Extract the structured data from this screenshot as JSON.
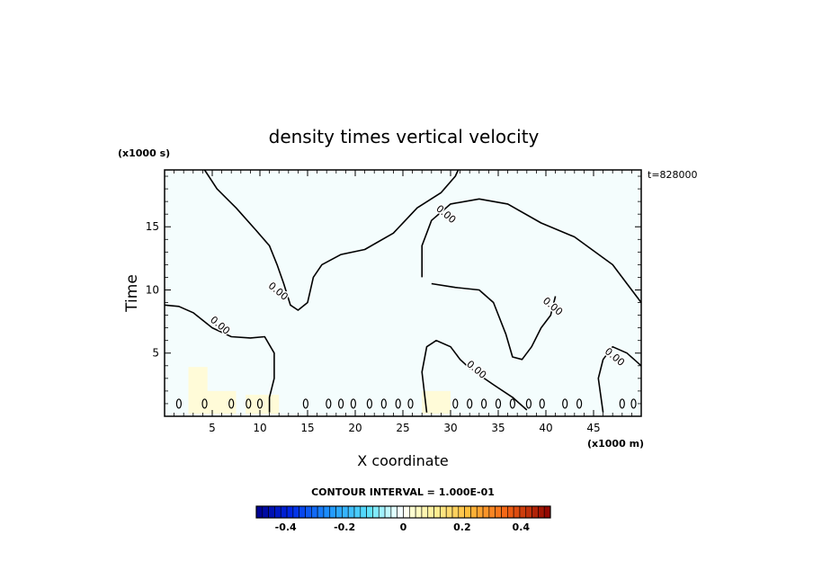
{
  "chart_data": {
    "type": "contour",
    "title": "density times vertical velocity",
    "xlabel": "X coordinate",
    "ylabel": "Time",
    "x_unit_label": "(x1000 m)",
    "y_unit_label": "(x1000 s)",
    "time_stamp": "t=828000",
    "xlim": [
      0,
      50
    ],
    "ylim": [
      0,
      19.5
    ],
    "x_ticks": [
      5,
      10,
      15,
      20,
      25,
      30,
      35,
      40,
      45
    ],
    "x_tick_labels": [
      "5",
      "10",
      "15",
      "20",
      "25",
      "30",
      "35",
      "40",
      "45"
    ],
    "y_ticks": [
      5,
      10,
      15
    ],
    "y_tick_labels": [
      "5",
      "10",
      "15"
    ],
    "contour_label": "0.00",
    "contour_interval_text": "CONTOUR INTERVAL = 1.000E-01",
    "colorbar": {
      "min": -0.5,
      "max": 0.5,
      "n_levels": 48,
      "tick_values": [
        -0.4,
        -0.2,
        0,
        0.2,
        0.4
      ],
      "tick_labels": [
        "-0.4",
        "-0.2",
        "0",
        "0.2",
        "0.4"
      ]
    },
    "zero_contour_lines": [
      [
        [
          4.2,
          19.5
        ],
        [
          5.5,
          18.0
        ],
        [
          7.5,
          16.5
        ],
        [
          9.5,
          14.8
        ],
        [
          11.0,
          13.5
        ],
        [
          11.8,
          12.0
        ],
        [
          12.5,
          10.5
        ],
        [
          13.2,
          8.8
        ],
        [
          14.0,
          8.4
        ],
        [
          15.0,
          9.0
        ],
        [
          15.6,
          11.0
        ],
        [
          16.5,
          12.0
        ],
        [
          18.5,
          12.8
        ],
        [
          21.0,
          13.2
        ],
        [
          24.0,
          14.5
        ],
        [
          26.5,
          16.5
        ],
        [
          29.0,
          17.7
        ],
        [
          30.5,
          19.0
        ],
        [
          30.8,
          19.5
        ]
      ],
      [
        [
          0.0,
          8.8
        ],
        [
          1.5,
          8.7
        ],
        [
          3.0,
          8.2
        ],
        [
          5.0,
          7.0
        ],
        [
          7.0,
          6.3
        ],
        [
          9.0,
          6.2
        ],
        [
          10.5,
          6.3
        ],
        [
          11.5,
          5.0
        ],
        [
          11.5,
          3.0
        ],
        [
          11.0,
          1.5
        ],
        [
          11.0,
          0.3
        ]
      ],
      [
        [
          27.5,
          0.3
        ],
        [
          27.0,
          3.5
        ],
        [
          27.5,
          5.5
        ],
        [
          28.5,
          6.0
        ],
        [
          30.0,
          5.5
        ],
        [
          31.0,
          4.5
        ],
        [
          32.0,
          3.8
        ],
        [
          34.5,
          2.5
        ],
        [
          36.5,
          1.5
        ],
        [
          38.0,
          0.5
        ]
      ],
      [
        [
          27.0,
          11.0
        ],
        [
          27.0,
          13.5
        ],
        [
          28.0,
          15.5
        ],
        [
          30.0,
          16.8
        ],
        [
          33.0,
          17.2
        ],
        [
          36.0,
          16.8
        ],
        [
          39.5,
          15.3
        ],
        [
          43.0,
          14.2
        ],
        [
          47.0,
          12.0
        ],
        [
          48.5,
          10.5
        ],
        [
          50.0,
          9.0
        ]
      ],
      [
        [
          28.0,
          10.5
        ],
        [
          30.5,
          10.2
        ],
        [
          33.0,
          10.0
        ],
        [
          34.5,
          9.0
        ],
        [
          35.8,
          6.5
        ],
        [
          36.5,
          4.7
        ],
        [
          37.5,
          4.5
        ],
        [
          38.5,
          5.5
        ],
        [
          39.5,
          7.0
        ],
        [
          40.5,
          8.0
        ],
        [
          41.0,
          9.5
        ]
      ],
      [
        [
          46.0,
          0.3
        ],
        [
          45.5,
          3.0
        ],
        [
          46.0,
          4.5
        ],
        [
          47.0,
          5.5
        ],
        [
          48.5,
          5.0
        ],
        [
          50.0,
          4.0
        ]
      ]
    ],
    "label_positions": [
      [
        11.7,
        9.7
      ],
      [
        5.6,
        7.0
      ],
      [
        29.3,
        15.8
      ],
      [
        32.5,
        3.5
      ],
      [
        40.5,
        8.5
      ],
      [
        47.0,
        4.5
      ]
    ],
    "shaded_regions": [
      {
        "sign": "positive",
        "x_range": [
          2.5,
          4.5
        ],
        "y_range": [
          0.2,
          3.9
        ]
      },
      {
        "sign": "positive",
        "x_range": [
          4.0,
          7.5
        ],
        "y_range": [
          0.2,
          2.0
        ]
      },
      {
        "sign": "positive",
        "x_range": [
          8.5,
          12.0
        ],
        "y_range": [
          0.2,
          1.7
        ]
      },
      {
        "sign": "positive",
        "x_range": [
          27.0,
          30.0
        ],
        "y_range": [
          0.2,
          2.0
        ]
      },
      {
        "sign": "negative",
        "x_range": [
          0.0,
          50.0
        ],
        "y_range": [
          0.2,
          19.5
        ]
      }
    ]
  }
}
